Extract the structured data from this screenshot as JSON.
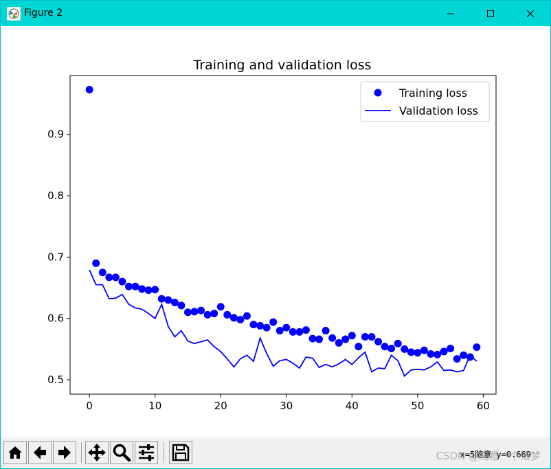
{
  "window": {
    "title": "Figure 2",
    "icons": [
      "app-icon",
      "minimize-icon",
      "maximize-icon",
      "close-icon"
    ]
  },
  "chart_data": {
    "type": "line",
    "title": "Training and validation loss",
    "xlabel": "",
    "ylabel": "",
    "xlim": [
      -2.95,
      61.95
    ],
    "ylim": [
      0.4765,
      0.996
    ],
    "xticks": [
      0,
      10,
      20,
      30,
      40,
      50,
      60
    ],
    "yticks": [
      0.5,
      0.6,
      0.7,
      0.8,
      0.9
    ],
    "xtick_labels": [
      "0",
      "10",
      "20",
      "30",
      "40",
      "50",
      "60"
    ],
    "ytick_labels": [
      "0.5",
      "0.6",
      "0.7",
      "0.8",
      "0.9"
    ],
    "grid": false,
    "legend_position": "top-right",
    "series": [
      {
        "name": "Training loss",
        "style": "markers",
        "color": "#0000ff",
        "x": [
          0,
          1,
          2,
          3,
          4,
          5,
          6,
          7,
          8,
          9,
          10,
          11,
          12,
          13,
          14,
          15,
          16,
          17,
          18,
          19,
          20,
          21,
          22,
          23,
          24,
          25,
          26,
          27,
          28,
          29,
          30,
          31,
          32,
          33,
          34,
          35,
          36,
          37,
          38,
          39,
          40,
          41,
          42,
          43,
          44,
          45,
          46,
          47,
          48,
          49,
          50,
          51,
          52,
          53,
          54,
          55,
          56,
          57,
          58,
          59
        ],
        "values": [
          0.973,
          0.69,
          0.675,
          0.667,
          0.667,
          0.66,
          0.652,
          0.652,
          0.648,
          0.646,
          0.647,
          0.632,
          0.63,
          0.626,
          0.621,
          0.61,
          0.611,
          0.613,
          0.606,
          0.608,
          0.619,
          0.606,
          0.601,
          0.598,
          0.604,
          0.59,
          0.588,
          0.585,
          0.594,
          0.58,
          0.585,
          0.578,
          0.578,
          0.581,
          0.567,
          0.566,
          0.58,
          0.568,
          0.56,
          0.566,
          0.572,
          0.554,
          0.57,
          0.57,
          0.562,
          0.554,
          0.551,
          0.559,
          0.55,
          0.545,
          0.544,
          0.548,
          0.542,
          0.541,
          0.546,
          0.551,
          0.534,
          0.54,
          0.537,
          0.553
        ]
      },
      {
        "name": "Validation loss",
        "style": "line",
        "color": "#0000ff",
        "x": [
          0,
          1,
          2,
          3,
          4,
          5,
          6,
          7,
          8,
          9,
          10,
          11,
          12,
          13,
          14,
          15,
          16,
          17,
          18,
          19,
          20,
          21,
          22,
          23,
          24,
          25,
          26,
          27,
          28,
          29,
          30,
          31,
          32,
          33,
          34,
          35,
          36,
          37,
          38,
          39,
          40,
          41,
          42,
          43,
          44,
          45,
          46,
          47,
          48,
          49,
          50,
          51,
          52,
          53,
          54,
          55,
          56,
          57,
          58,
          59
        ],
        "values": [
          0.679,
          0.655,
          0.655,
          0.632,
          0.633,
          0.639,
          0.623,
          0.617,
          0.615,
          0.608,
          0.6,
          0.623,
          0.587,
          0.57,
          0.58,
          0.563,
          0.559,
          0.562,
          0.565,
          0.554,
          0.546,
          0.534,
          0.521,
          0.534,
          0.54,
          0.53,
          0.568,
          0.543,
          0.522,
          0.531,
          0.533,
          0.527,
          0.519,
          0.537,
          0.535,
          0.52,
          0.525,
          0.521,
          0.526,
          0.533,
          0.525,
          0.536,
          0.545,
          0.513,
          0.519,
          0.518,
          0.54,
          0.531,
          0.506,
          0.516,
          0.517,
          0.516,
          0.521,
          0.529,
          0.515,
          0.516,
          0.513,
          0.515,
          0.54,
          0.53
        ]
      }
    ]
  },
  "toolbar": {
    "buttons": [
      "home-icon",
      "back-icon",
      "forward-icon",
      "pan-icon",
      "zoom-icon",
      "configure-subplots-icon",
      "save-icon"
    ],
    "coordinates": "x=5随意 y=0.669",
    "watermark": "CSDN @随意一个法梦"
  }
}
